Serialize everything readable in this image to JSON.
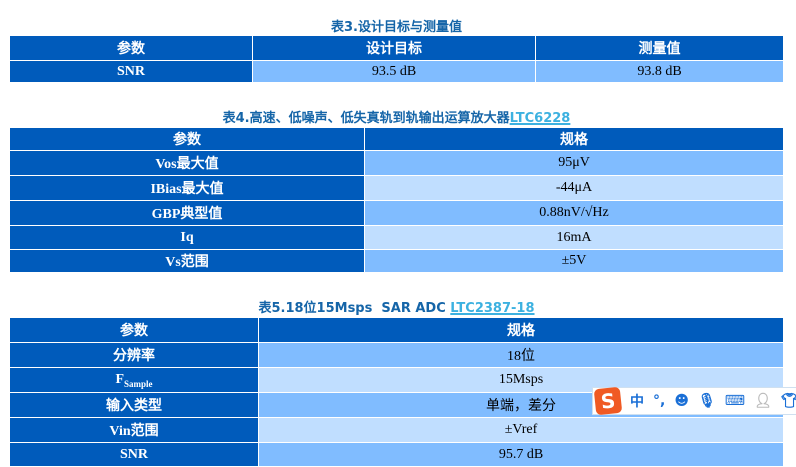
{
  "table3": {
    "title": "表3.设计目标与测量值",
    "headers": [
      "参数",
      "设计目标",
      "测量值"
    ],
    "rows": [
      [
        "SNR",
        "93.5 dB",
        "93.8 dB"
      ]
    ]
  },
  "table4": {
    "title": "表4.高速、低噪声、低失真轨到轨输出运算放大器",
    "link": "LTC6228",
    "headers": [
      "参数",
      "规格"
    ],
    "rows": [
      [
        "Vos最大值",
        "95μV"
      ],
      [
        "IBias最大值",
        "-44μA"
      ],
      [
        "GBP典型值",
        "0.88nV/√Hz"
      ],
      [
        "Iq",
        "16mA"
      ],
      [
        "Vs范围",
        "±5V"
      ]
    ]
  },
  "table5": {
    "title": "表5.18位15Msps  SAR ADC ",
    "link": "LTC2387-18",
    "headers": [
      "参数",
      "规格"
    ],
    "rows": [
      [
        "分辨率",
        "18位"
      ],
      [
        "F",
        "15Msps"
      ],
      [
        "输入类型",
        "单端，差分"
      ],
      [
        "Vin范围",
        "±Vref"
      ],
      [
        "SNR",
        "95.7 dB"
      ]
    ],
    "fsample_sub": "Sample"
  },
  "ime": {
    "logo": "S",
    "mode": "中",
    "punct": "°,",
    "icons": [
      "emoji-icon",
      "microphone-icon",
      "keyboard-icon",
      "user-card-icon",
      "skin-shirt-icon"
    ]
  }
}
